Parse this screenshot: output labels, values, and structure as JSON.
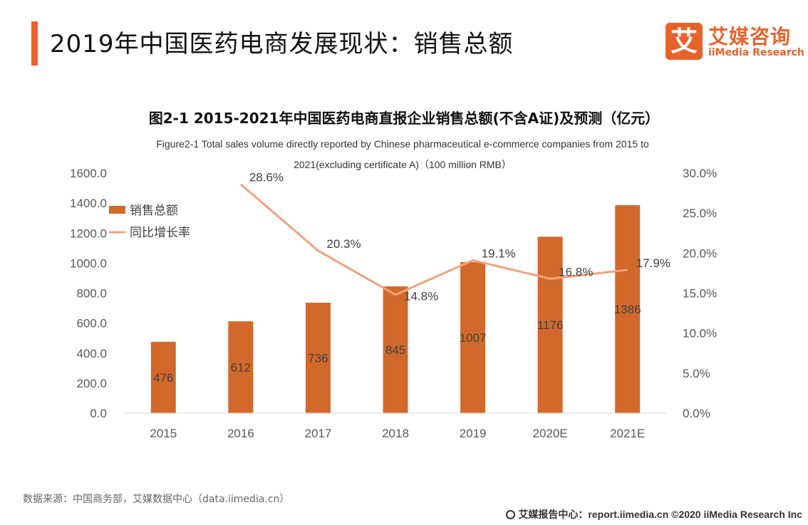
{
  "header": {
    "title": "2019年中国医药电商发展现状：销售总额",
    "logo": {
      "mark": "艾",
      "cn": "艾媒咨询",
      "en": "iiMedia Research"
    }
  },
  "chart_data": {
    "type": "bar",
    "title": "图2-1 2015-2021年中国医药电商直报企业销售总额(不含A证)及预测（亿元）",
    "subtitle_line1": "Figure2-1 Total sales volume directly reported by Chinese pharmaceutical e-commerce companies from 2015 to",
    "subtitle_line2": "2021(excluding certificate A)（100 million RMB）",
    "categories": [
      "2015",
      "2016",
      "2017",
      "2018",
      "2019",
      "2020E",
      "2021E"
    ],
    "series": [
      {
        "name": "销售总额",
        "type": "bar",
        "axis": "left",
        "values": [
          476,
          612,
          736,
          845,
          1007,
          1176,
          1386
        ],
        "labels": [
          "476",
          "612",
          "736",
          "845",
          "1007",
          "1176",
          "1386"
        ]
      },
      {
        "name": "同比增长率",
        "type": "line",
        "axis": "right",
        "values": [
          null,
          28.6,
          20.3,
          14.8,
          19.1,
          16.8,
          17.9
        ],
        "labels": [
          "",
          "28.6%",
          "20.3%",
          "14.8%",
          "19.1%",
          "16.8%",
          "17.9%"
        ]
      }
    ],
    "ylim_left": [
      0,
      1600
    ],
    "ylim_right": [
      0,
      30
    ],
    "left_ticks": [
      "0.0",
      "200.0",
      "400.0",
      "600.0",
      "800.0",
      "1000.0",
      "1200.0",
      "1400.0",
      "1600.0"
    ],
    "right_ticks": [
      "0.0%",
      "5.0%",
      "10.0%",
      "15.0%",
      "20.0%",
      "25.0%",
      "30.0%"
    ],
    "legend_position": "top-left",
    "grid": false,
    "colors": {
      "bar": "#d2692a",
      "line": "#f2a27f",
      "accent": "#e8622c"
    }
  },
  "footer": {
    "source": "数据来源：中国商务部，艾媒数据中心（data.iimedia.cn）",
    "credit": "艾媒报告中心：report.iimedia.cn  ©2020  iiMedia Research  Inc"
  }
}
